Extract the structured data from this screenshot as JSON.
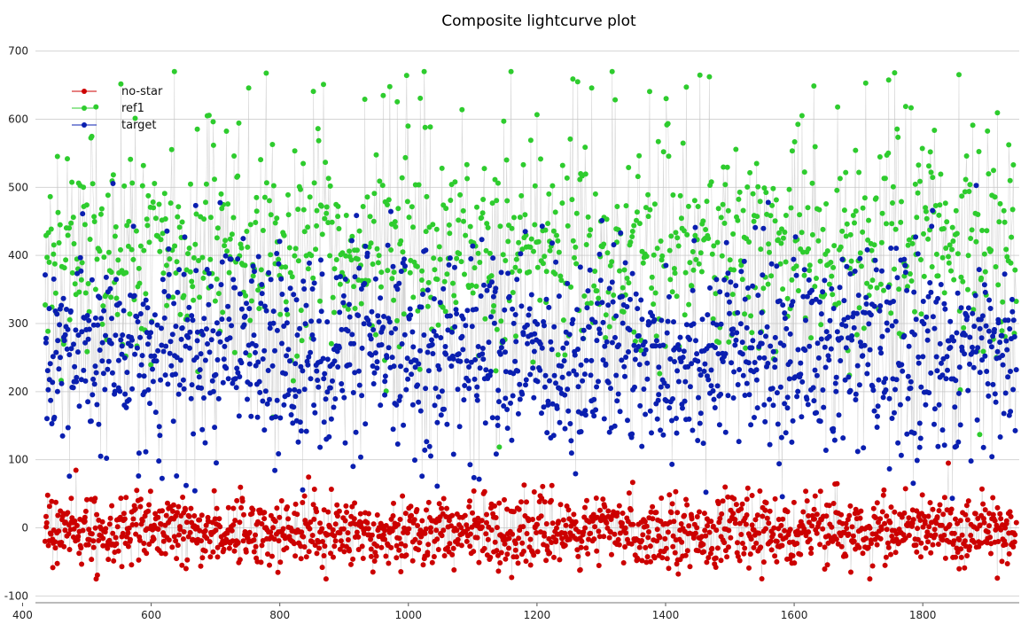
{
  "chart_data": {
    "type": "scatter",
    "title": "Composite lightcurve plot",
    "xlabel": "",
    "ylabel": "",
    "xlim": [
      420,
      1950
    ],
    "ylim": [
      -110,
      710
    ],
    "xticks": [
      400,
      600,
      800,
      1000,
      1200,
      1400,
      1600,
      1800
    ],
    "yticks": [
      -100,
      0,
      100,
      200,
      300,
      400,
      500,
      600,
      700
    ],
    "grid": true,
    "legend_position": "top-left",
    "series": [
      {
        "name": "no-star",
        "color": "#cc0000",
        "x_range": [
          435,
          1945
        ],
        "point_count": 1500,
        "center": -5,
        "spread": 25,
        "min": -75,
        "max": 95
      },
      {
        "name": "ref1",
        "color": "#2ecc2e",
        "x_range": [
          435,
          1945
        ],
        "point_count": 1100,
        "center": 400,
        "spread": 70,
        "min": 85,
        "max": 670
      },
      {
        "name": "target",
        "color": "#0a1fb0",
        "x_range": [
          435,
          1945
        ],
        "point_count": 1500,
        "center": 255,
        "spread": 75,
        "min": 10,
        "max": 575
      }
    ]
  }
}
